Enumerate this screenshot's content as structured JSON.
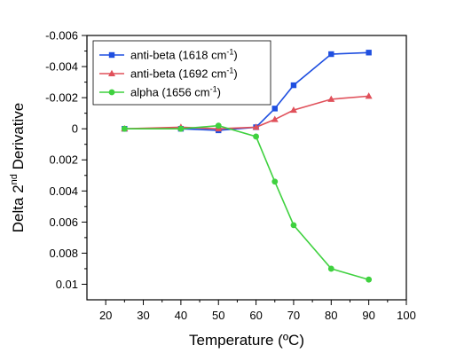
{
  "chart_data": {
    "type": "line",
    "xlabel": "Temperature (ºC)",
    "ylabel_parts": {
      "pre": "Delta 2",
      "sup": "nd",
      "post": " Derivative"
    },
    "xlim": [
      15,
      100
    ],
    "ylim": [
      0.011,
      -0.006
    ],
    "y_inverted": true,
    "x_ticks": [
      20,
      30,
      40,
      50,
      60,
      70,
      80,
      90,
      100
    ],
    "y_ticks": [
      {
        "value": -0.006,
        "label": "-0.006"
      },
      {
        "value": -0.004,
        "label": "-0.004"
      },
      {
        "value": -0.002,
        "label": "-0.002"
      },
      {
        "value": 0,
        "label": "0"
      },
      {
        "value": 0.002,
        "label": "0.002"
      },
      {
        "value": 0.004,
        "label": "0.004"
      },
      {
        "value": 0.006,
        "label": "0.006"
      },
      {
        "value": 0.008,
        "label": "0.008"
      },
      {
        "value": 0.01,
        "label": "0.01"
      }
    ],
    "grid": false,
    "legend_position": "top-left",
    "series": [
      {
        "name": "anti-beta (1618 cm-1)",
        "name_parts": {
          "pre": "anti-beta (1618 cm",
          "sup": "-1",
          "post": ")"
        },
        "color": "#1f4fe0",
        "marker": "square",
        "x": [
          25,
          40,
          50,
          60,
          65,
          70,
          80,
          90
        ],
        "y": [
          0.0,
          0.0,
          0.0001,
          -0.0001,
          -0.0013,
          -0.0028,
          -0.0048,
          -0.0049
        ]
      },
      {
        "name": "anti-beta (1692 cm-1)",
        "name_parts": {
          "pre": "anti-beta (1692 cm",
          "sup": "-1",
          "post": ")"
        },
        "color": "#e0505a",
        "marker": "triangle",
        "x": [
          25,
          40,
          50,
          60,
          65,
          70,
          80,
          90
        ],
        "y": [
          0.0,
          -0.0001,
          0.0,
          -0.0001,
          -0.0006,
          -0.0012,
          -0.0019,
          -0.0021
        ]
      },
      {
        "name": "alpha (1656 cm-1)",
        "name_parts": {
          "pre": "alpha (1656 cm",
          "sup": "-1",
          "post": ")"
        },
        "color": "#3fd13f",
        "marker": "circle",
        "x": [
          25,
          40,
          50,
          60,
          65,
          70,
          80,
          90
        ],
        "y": [
          0.0,
          0.0,
          -0.0002,
          0.0005,
          0.0034,
          0.0062,
          0.009,
          0.0097
        ]
      }
    ]
  }
}
